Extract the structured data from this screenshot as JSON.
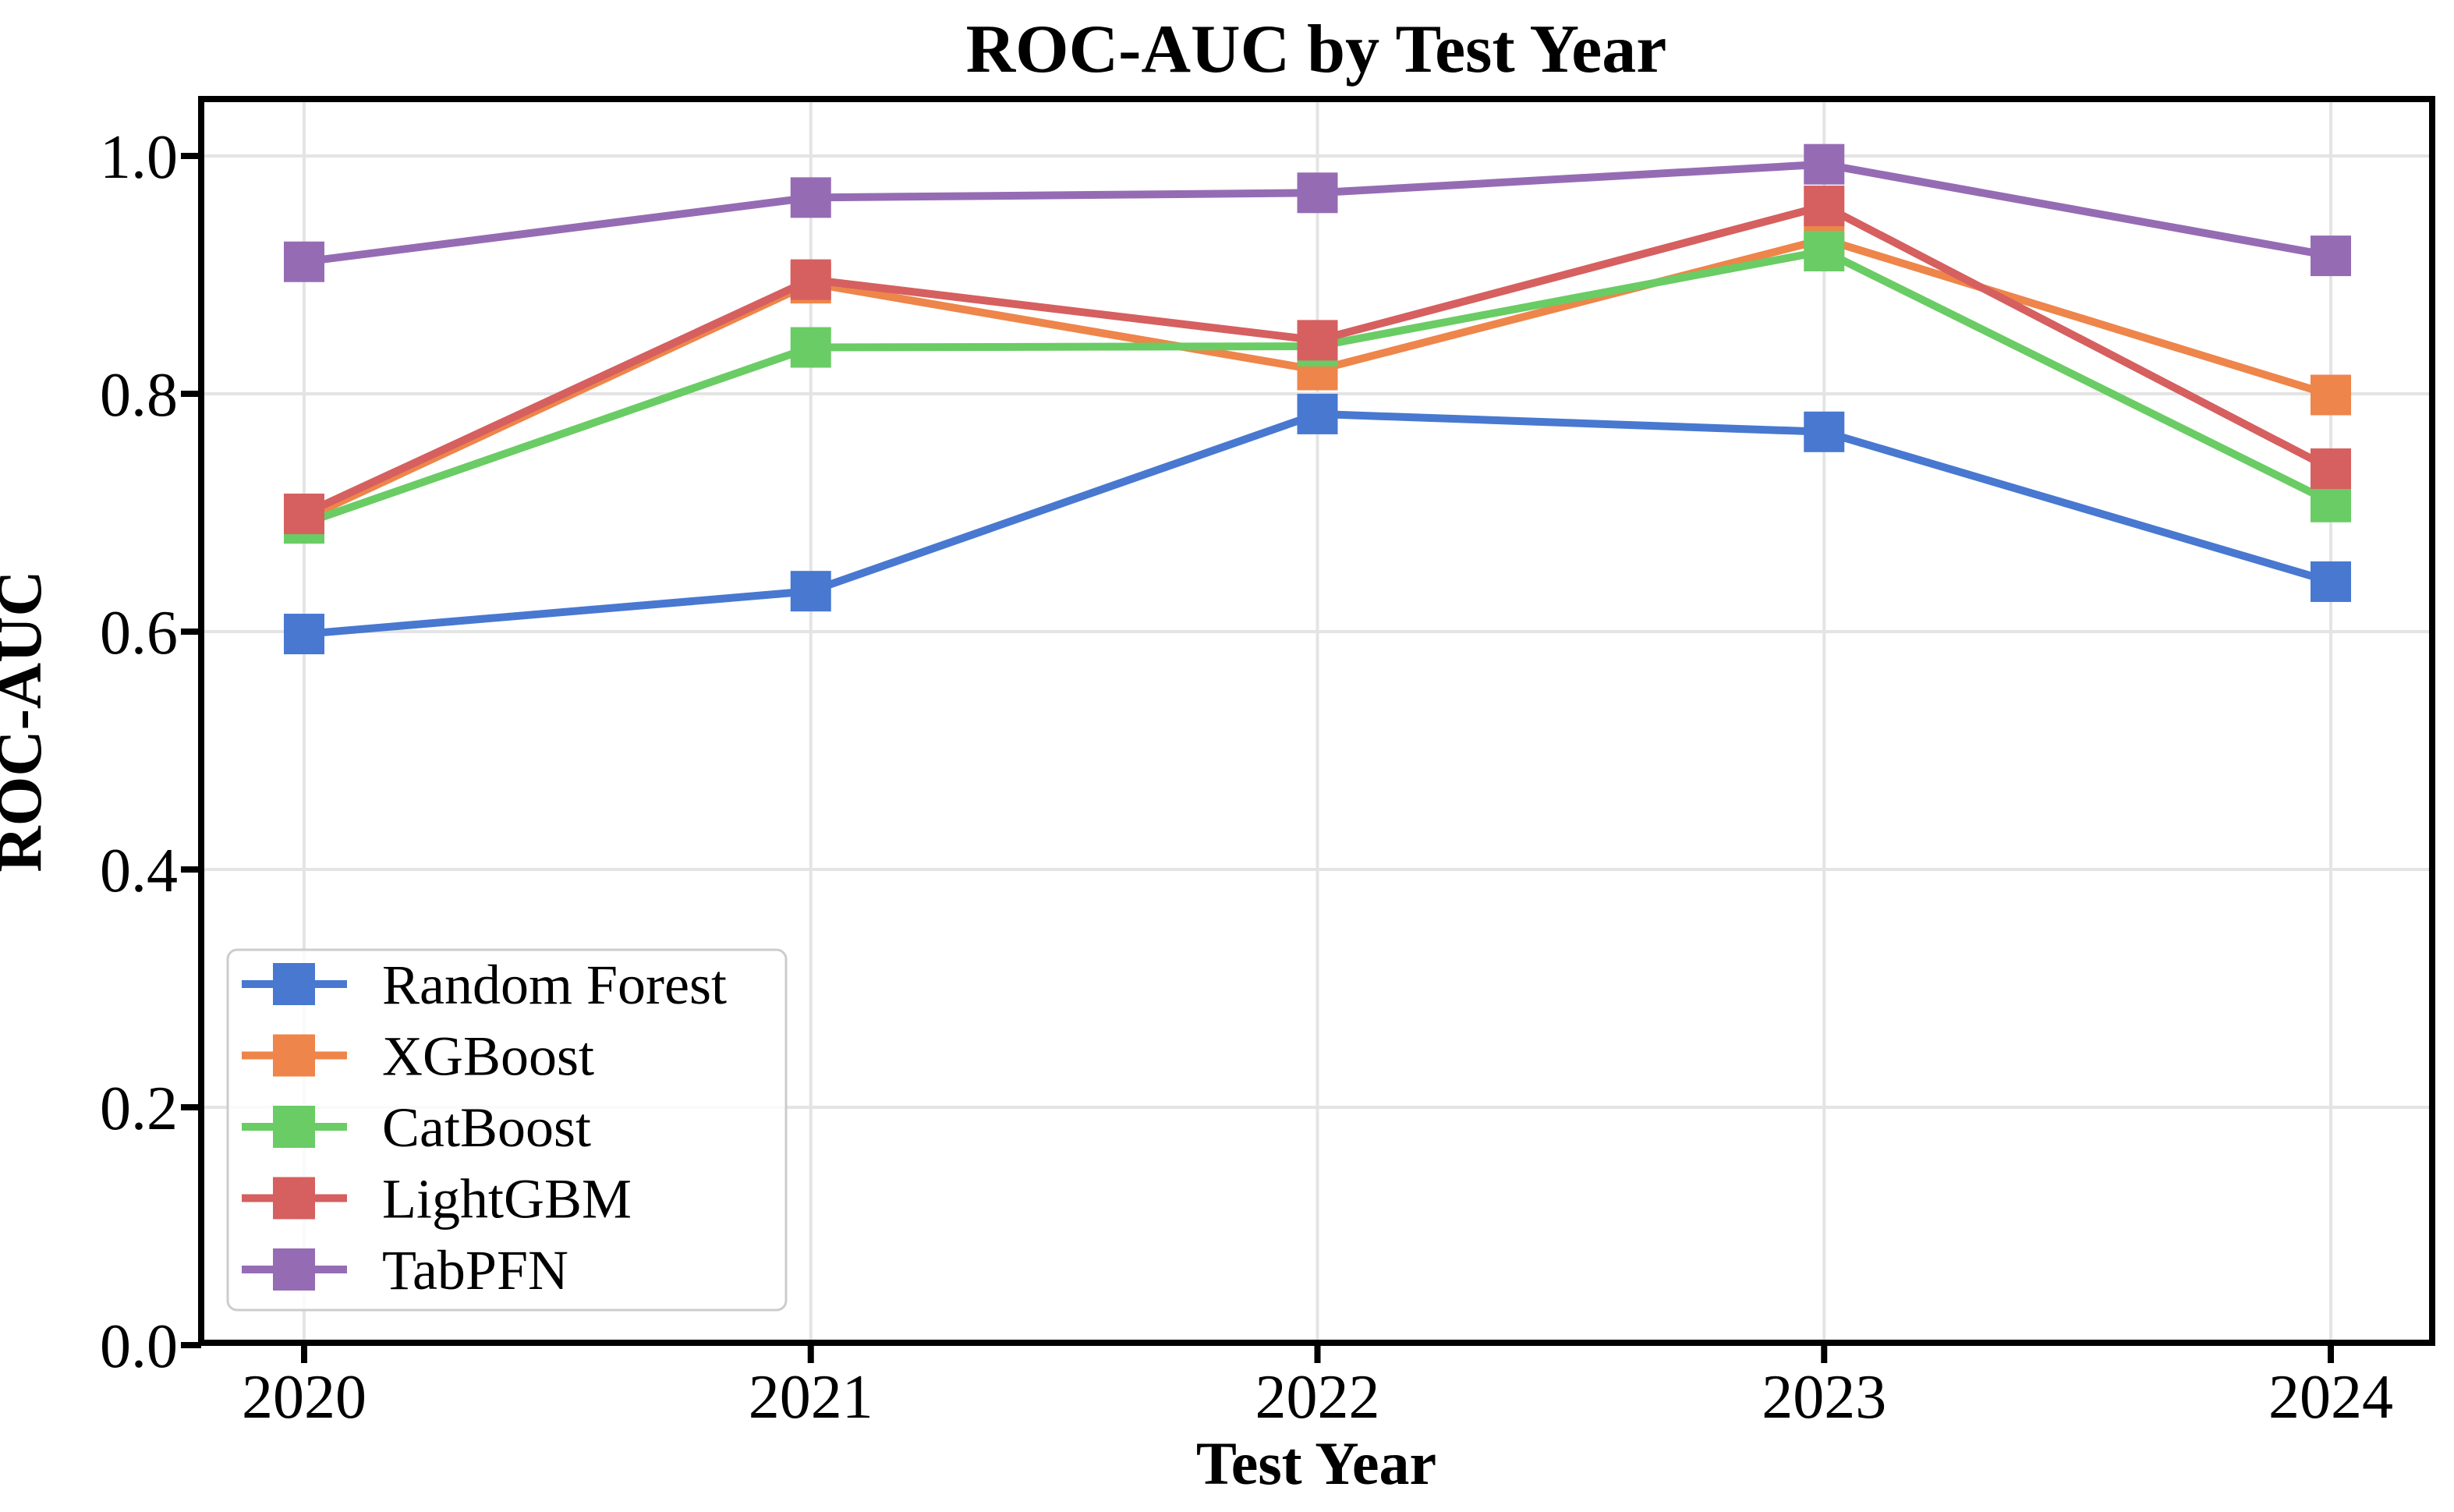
{
  "figure": {
    "title": "ROC-AUC by Test Year",
    "background_color": "#ffffff",
    "axes_edge_color": "#000000",
    "grid_color": "#e4e4e4"
  },
  "chart_data": {
    "type": "line",
    "title": "ROC-AUC by Test Year",
    "xlabel": "Test Year",
    "ylabel": "ROC-AUC",
    "x": [
      2020,
      2021,
      2022,
      2023,
      2024
    ],
    "xtick_labels": [
      "2020",
      "2021",
      "2022",
      "2023",
      "2024"
    ],
    "yticks": [
      0.0,
      0.2,
      0.4,
      0.6,
      0.8,
      1.0
    ],
    "ytick_labels": [
      "0.0",
      "0.2",
      "0.4",
      "0.6",
      "0.8",
      "1.0"
    ],
    "xlim": [
      2019.8,
      2024.2
    ],
    "ylim": [
      0.0,
      1.048
    ],
    "grid": true,
    "marker": "square",
    "legend_position": "lower left",
    "series": [
      {
        "name": "Random Forest",
        "color": "#4878D0",
        "values": [
          0.598,
          0.634,
          0.783,
          0.768,
          0.642
        ]
      },
      {
        "name": "XGBoost",
        "color": "#EE854A",
        "values": [
          0.695,
          0.893,
          0.82,
          0.93,
          0.799
        ]
      },
      {
        "name": "CatBoost",
        "color": "#6ACC64",
        "values": [
          0.691,
          0.839,
          0.84,
          0.92,
          0.709
        ]
      },
      {
        "name": "LightGBM",
        "color": "#D65F5F",
        "values": [
          0.699,
          0.896,
          0.845,
          0.958,
          0.737
        ]
      },
      {
        "name": "TabPFN",
        "color": "#956CB4",
        "values": [
          0.911,
          0.965,
          0.969,
          0.993,
          0.916
        ]
      }
    ]
  }
}
